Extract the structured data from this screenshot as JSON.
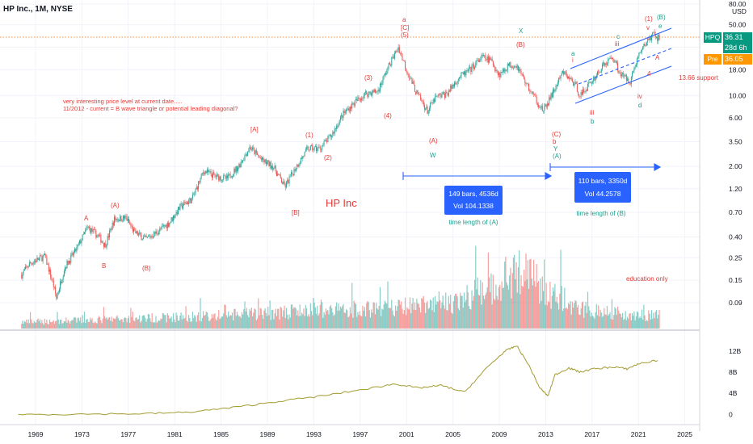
{
  "header": {
    "title": "HP Inc., 1M, NYSE"
  },
  "price_axis": {
    "currency": "USD",
    "ticks": [
      "80.00",
      "50.00",
      "30.00",
      "18.00",
      "10.00",
      "6.00",
      "3.50",
      "2.00",
      "1.20",
      "0.70",
      "0.40",
      "0.25",
      "0.15",
      "0.09"
    ]
  },
  "indicator_axis": {
    "ticks": [
      "12B",
      "8B",
      "4B",
      "0"
    ]
  },
  "time_axis": {
    "ticks": [
      "1969",
      "1973",
      "1977",
      "1981",
      "1985",
      "1989",
      "1993",
      "1997",
      "2001",
      "2005",
      "2009",
      "2013",
      "2017",
      "2021",
      "2025"
    ]
  },
  "badges": {
    "hpq_symbol": "HPQ",
    "hpq_price": "36.31",
    "hpq_countdown": "28d 6h",
    "pre_label": "Pre",
    "pre_price": "36.05",
    "hpq_color": "#089981",
    "pre_color": "#ff9800"
  },
  "annotations": {
    "note_line1": "very interesting price level at current date.....",
    "note_line2": "11/2012 - current = B wave triangle or potential leading diagonal?",
    "chart_label": "HP Inc",
    "support": "13.66 support",
    "education": "education only",
    "measure_a_line1": "149 bars, 4536d",
    "measure_a_line2": "Vol 104.1338",
    "measure_a_caption": "time length of (A)",
    "measure_b_line1": "110 bars, 3350d",
    "measure_b_line2": "Vol 44.2578",
    "measure_b_caption": "time length of (B)"
  },
  "wave_labels": {
    "A": "A",
    "B": "B",
    "pA": "(A)",
    "pB": "(B)",
    "bA": "[A]",
    "bB": "[B]",
    "p1": "(1)",
    "p2": "(2)",
    "p3": "(3)",
    "p4": "(4)",
    "a": "a",
    "bC": "[C]",
    "p5": "(5)",
    "pA2": "(A)",
    "W": "W",
    "X": "X",
    "pB2": "(B)",
    "pC": "(C)",
    "b": "b",
    "y": "Y",
    "pA3": "(A)",
    "a2": "a",
    "i": "i",
    "iii": "iii",
    "b2": "b",
    "c": "c",
    "iii2": "iii",
    "iv": "iv",
    "d": "d",
    "p1b": "(1)",
    "v": "v",
    "pB3": "(B)",
    "e": "e",
    "A3": "A",
    "four": "4"
  },
  "colors": {
    "up": "#26a69a",
    "down": "#ef5350",
    "wave_red": "#e53935",
    "wave_teal": "#1e9e8c",
    "measure": "#2962ff",
    "oscillator": "#a39b30"
  },
  "chart_data": {
    "type": "candlestick",
    "title": "HP Inc., 1M, NYSE",
    "y_scale": "log",
    "ylim": [
      0.06,
      80
    ],
    "x_range": [
      1967.0,
      2027.0
    ],
    "current_price": 36.31,
    "premarket_price": 36.05,
    "support_level": 13.66,
    "price_path": [
      [
        1967.8,
        0.17
      ],
      [
        1968.5,
        0.22
      ],
      [
        1969.8,
        0.26
      ],
      [
        1970.5,
        0.14
      ],
      [
        1970.8,
        0.1
      ],
      [
        1971.5,
        0.2
      ],
      [
        1972.5,
        0.3
      ],
      [
        1973.5,
        0.5
      ],
      [
        1974.5,
        0.4
      ],
      [
        1975.0,
        0.33
      ],
      [
        1975.8,
        0.6
      ],
      [
        1976.8,
        0.62
      ],
      [
        1977.5,
        0.45
      ],
      [
        1978.5,
        0.38
      ],
      [
        1979.5,
        0.45
      ],
      [
        1980.5,
        0.55
      ],
      [
        1981.5,
        0.8
      ],
      [
        1982.5,
        0.95
      ],
      [
        1983.5,
        1.8
      ],
      [
        1984.5,
        1.6
      ],
      [
        1985.5,
        1.5
      ],
      [
        1986.5,
        2.0
      ],
      [
        1987.5,
        3.1
      ],
      [
        1988.5,
        2.3
      ],
      [
        1989.5,
        2.0
      ],
      [
        1990.5,
        1.25
      ],
      [
        1991.5,
        2.0
      ],
      [
        1992.5,
        3.0
      ],
      [
        1993.5,
        3.0
      ],
      [
        1994.5,
        4.0
      ],
      [
        1995.5,
        6.5
      ],
      [
        1996.5,
        8.5
      ],
      [
        1997.5,
        10.5
      ],
      [
        1998.5,
        11.0
      ],
      [
        1999.5,
        20.0
      ],
      [
        2000.3,
        30.0
      ],
      [
        2001.0,
        18.0
      ],
      [
        2001.8,
        11.0
      ],
      [
        2002.8,
        7.0
      ],
      [
        2003.5,
        9.5
      ],
      [
        2004.5,
        10.5
      ],
      [
        2005.5,
        15.0
      ],
      [
        2006.5,
        18.0
      ],
      [
        2007.5,
        24.0
      ],
      [
        2008.3,
        22.0
      ],
      [
        2009.0,
        16.0
      ],
      [
        2009.8,
        20.0
      ],
      [
        2010.5,
        20.0
      ],
      [
        2011.5,
        12.0
      ],
      [
        2012.8,
        7.0
      ],
      [
        2013.5,
        10.0
      ],
      [
        2014.5,
        17.0
      ],
      [
        2015.5,
        13.0
      ],
      [
        2016.0,
        10.0
      ],
      [
        2017.0,
        14.0
      ],
      [
        2018.0,
        20.0
      ],
      [
        2018.8,
        24.0
      ],
      [
        2019.5,
        16.0
      ],
      [
        2020.3,
        14.0
      ],
      [
        2021.0,
        25.0
      ],
      [
        2021.8,
        35.0
      ],
      [
        2022.3,
        40.0
      ],
      [
        2022.8,
        36.31
      ]
    ],
    "volume_path": [
      [
        1968,
        0.05
      ],
      [
        1975,
        0.07
      ],
      [
        1985,
        0.1
      ],
      [
        1993,
        0.14
      ],
      [
        2000,
        0.16
      ],
      [
        2005,
        0.2
      ],
      [
        2009,
        0.34
      ],
      [
        2011,
        0.45
      ],
      [
        2013,
        0.3
      ],
      [
        2016,
        0.15
      ],
      [
        2022,
        0.1
      ]
    ],
    "oscillator": {
      "ylim": [
        -1,
        13.5
      ],
      "points": [
        [
          1967.5,
          0
        ],
        [
          1972,
          0.05
        ],
        [
          1978,
          0.15
        ],
        [
          1982,
          0.4
        ],
        [
          1986,
          1.3
        ],
        [
          1990,
          2.5
        ],
        [
          1994,
          3.6
        ],
        [
          1998,
          5.0
        ],
        [
          2000,
          5.8
        ],
        [
          2002,
          5.0
        ],
        [
          2004,
          5.5
        ],
        [
          2006,
          4.2
        ],
        [
          2008,
          9.0
        ],
        [
          2009.5,
          12.0
        ],
        [
          2010.5,
          13.0
        ],
        [
          2011.5,
          9.5
        ],
        [
          2012.5,
          5.0
        ],
        [
          2013.2,
          3.5
        ],
        [
          2013.8,
          7.5
        ],
        [
          2015,
          8.8
        ],
        [
          2016,
          8.0
        ],
        [
          2017,
          8.6
        ],
        [
          2019,
          9.0
        ],
        [
          2020,
          8.6
        ],
        [
          2021,
          9.6
        ],
        [
          2022.8,
          10.3
        ]
      ]
    }
  }
}
